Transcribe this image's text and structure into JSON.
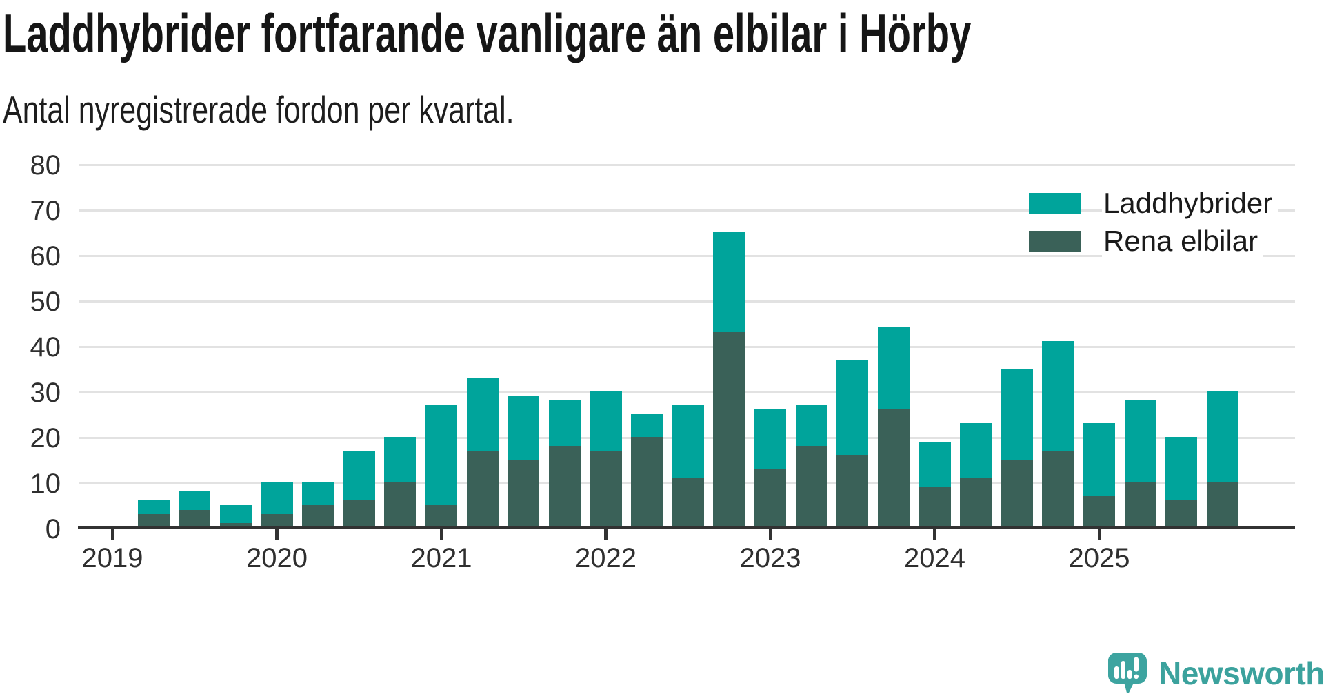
{
  "title": "Laddhybrider fortfarande vanligare än elbilar i Hörby",
  "subtitle": "Antal nyregistrerade fordon per kvartal.",
  "colors": {
    "laddhybrider": "#00a49b",
    "rena_elbilar": "#3a6158",
    "grid": "#e2e2e2",
    "axis": "#323232",
    "title_text": "#161616",
    "tick_text": "#2f2f2f",
    "brand_teal": "#3ba29d"
  },
  "legend": {
    "items": [
      {
        "label": "Laddhybrider",
        "color": "#00a49b"
      },
      {
        "label": "Rena elbilar",
        "color": "#3a6158"
      }
    ]
  },
  "chart_data": {
    "type": "bar",
    "stacked": true,
    "title": "Laddhybrider fortfarande vanligare än elbilar i Hörby",
    "subtitle": "Antal nyregistrerade fordon per kvartal.",
    "x": [
      "2019 Q2",
      "2019 Q3",
      "2019 Q4",
      "2020 Q1",
      "2020 Q2",
      "2020 Q3",
      "2020 Q4",
      "2021 Q1",
      "2021 Q2",
      "2021 Q3",
      "2021 Q4",
      "2022 Q1",
      "2022 Q2",
      "2022 Q3",
      "2022 Q4",
      "2023 Q1",
      "2023 Q2",
      "2023 Q3",
      "2023 Q4",
      "2024 Q1",
      "2024 Q2",
      "2024 Q3",
      "2024 Q4",
      "2025 Q1",
      "2025 Q2",
      "2025 Q3",
      "2025 Q4"
    ],
    "series": [
      {
        "name": "Rena elbilar",
        "color": "#3a6158",
        "values": [
          3,
          4,
          1,
          3,
          5,
          6,
          10,
          5,
          17,
          15,
          18,
          17,
          20,
          11,
          43,
          13,
          18,
          16,
          26,
          9,
          11,
          15,
          17,
          7,
          10,
          6,
          10
        ]
      },
      {
        "name": "Laddhybrider",
        "color": "#00a49b",
        "values": [
          3,
          4,
          4,
          7,
          5,
          11,
          10,
          22,
          16,
          14,
          10,
          13,
          5,
          16,
          22,
          13,
          9,
          21,
          18,
          10,
          12,
          20,
          24,
          16,
          18,
          14,
          20
        ]
      }
    ],
    "totals": [
      6,
      8,
      5,
      10,
      10,
      17,
      20,
      27,
      33,
      29,
      28,
      30,
      25,
      27,
      65,
      26,
      27,
      37,
      44,
      19,
      23,
      35,
      41,
      23,
      28,
      20,
      30
    ],
    "ylim": [
      0,
      80
    ],
    "yticks": [
      0,
      10,
      20,
      30,
      40,
      50,
      60,
      70,
      80
    ],
    "year_ticks": [
      "2019",
      "2020",
      "2021",
      "2022",
      "2023",
      "2024",
      "2025"
    ],
    "grid": true,
    "legend_position": "top-right"
  },
  "branding": {
    "wordmark": "Newsworthy"
  }
}
